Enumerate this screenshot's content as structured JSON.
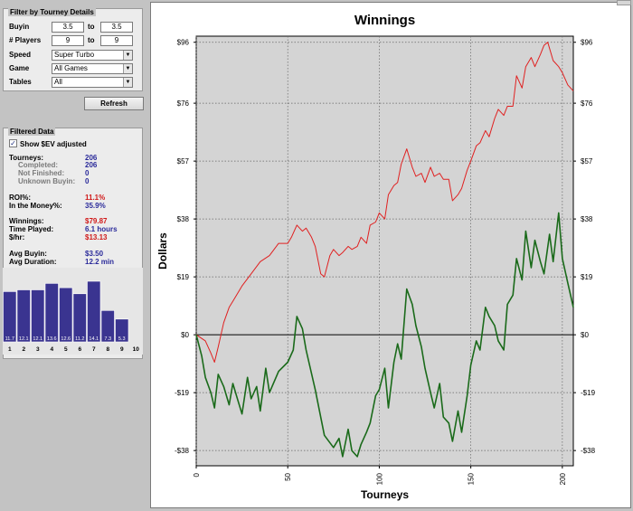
{
  "filter": {
    "title": "Filter by Tourney Details",
    "buyin": {
      "label": "Buyin",
      "from": "3.5",
      "to_label": "to",
      "to": "3.5"
    },
    "players": {
      "label": "# Players",
      "from": "9",
      "to_label": "to",
      "to": "9"
    },
    "speed": {
      "label": "Speed",
      "value": "Super Turbo"
    },
    "game": {
      "label": "Game",
      "value": "All Games"
    },
    "tables": {
      "label": "Tables",
      "value": "All"
    },
    "refresh_label": "Refresh"
  },
  "filtered": {
    "title": "Filtered Data",
    "show_sev_label": "Show $EV adjusted",
    "show_sev_checked": true,
    "check_glyph": "✓",
    "stats": [
      {
        "key": "Tourneys:",
        "value": "206",
        "type": "main",
        "color": "blue"
      },
      {
        "key": "Completed:",
        "value": "206",
        "type": "sub",
        "color": "blue"
      },
      {
        "key": "Not Finished:",
        "value": "0",
        "type": "sub",
        "color": "blue"
      },
      {
        "key": "Unknown Buyin:",
        "value": "0",
        "type": "sub",
        "color": "blue"
      },
      {
        "key": "ROI%:",
        "value": "11.1%",
        "type": "main",
        "color": "red"
      },
      {
        "key": "In the Money%:",
        "value": "35.9%",
        "type": "main",
        "color": "blue"
      },
      {
        "key": "Winnings:",
        "value": "$79.87",
        "type": "main",
        "color": "red"
      },
      {
        "key": "Time Played:",
        "value": "6.1 hours",
        "type": "main",
        "color": "blue"
      },
      {
        "key": "$/hr:",
        "value": "$13.13",
        "type": "main",
        "color": "red"
      },
      {
        "key": "Avg Buyin:",
        "value": "$3.50",
        "type": "main",
        "color": "blue"
      },
      {
        "key": "Avg Duration:",
        "value": "12.2 min",
        "type": "main",
        "color": "blue"
      }
    ],
    "histogram": {
      "positions": [
        "1",
        "2",
        "3",
        "4",
        "5",
        "6",
        "7",
        "8",
        "9",
        "10"
      ],
      "bar_labels": [
        "11.7",
        "12.1",
        "12.1",
        "13.6",
        "12.6",
        "11.2",
        "14.1",
        "7.3",
        "5.3",
        ""
      ],
      "values": [
        11.7,
        12.1,
        12.1,
        13.6,
        12.6,
        11.2,
        14.1,
        7.3,
        5.3,
        0
      ],
      "color": "#3a3490"
    }
  },
  "chart_data": {
    "type": "line",
    "title": "Winnings",
    "xlabel": "Tourneys",
    "ylabel": "Dollars",
    "xlim": [
      0,
      206
    ],
    "ylim": [
      -43,
      98
    ],
    "x_ticks": [
      0,
      50,
      100,
      150,
      200
    ],
    "y_ticks": [
      -38,
      -19,
      0,
      19,
      38,
      57,
      76,
      96
    ],
    "y_tick_labels": [
      "-$38",
      "-$19",
      "$0",
      "$19",
      "$38",
      "$57",
      "$76",
      "$96"
    ],
    "grid": true,
    "series": [
      {
        "color": "#e02020",
        "x": [
          0,
          5,
          8,
          10,
          12,
          15,
          18,
          20,
          25,
          30,
          35,
          40,
          45,
          50,
          52,
          55,
          58,
          60,
          63,
          65,
          68,
          70,
          73,
          75,
          78,
          80,
          83,
          85,
          88,
          90,
          93,
          95,
          98,
          100,
          103,
          105,
          108,
          110,
          112,
          115,
          118,
          120,
          123,
          125,
          128,
          130,
          133,
          135,
          138,
          140,
          143,
          145,
          148,
          150,
          153,
          155,
          158,
          160,
          163,
          165,
          168,
          170,
          173,
          175,
          178,
          180,
          183,
          185,
          188,
          190,
          192,
          195,
          198,
          200,
          203,
          206
        ],
        "y": [
          0,
          -2,
          -6,
          -9,
          -4,
          4,
          9,
          11,
          16,
          20,
          24,
          26,
          30,
          30,
          32,
          36,
          34,
          35,
          32,
          29,
          20,
          19,
          26,
          28,
          26,
          27,
          29,
          28,
          29,
          32,
          30,
          36,
          37,
          40,
          38,
          46,
          49,
          50,
          56,
          61,
          55,
          52,
          53,
          50,
          55,
          52,
          53,
          51,
          51,
          44,
          46,
          48,
          54,
          57,
          62,
          63,
          67,
          65,
          71,
          74,
          72,
          75,
          75,
          85,
          81,
          88,
          91,
          88,
          92,
          95,
          96,
          90,
          88,
          86,
          82,
          80
        ]
      },
      {
        "color": "#1a6a1a",
        "x": [
          0,
          3,
          5,
          8,
          10,
          12,
          15,
          18,
          20,
          22,
          25,
          28,
          30,
          33,
          35,
          38,
          40,
          45,
          50,
          53,
          55,
          58,
          60,
          65,
          70,
          75,
          78,
          80,
          83,
          85,
          88,
          90,
          93,
          95,
          98,
          100,
          103,
          105,
          108,
          110,
          112,
          115,
          118,
          120,
          123,
          125,
          128,
          130,
          133,
          135,
          138,
          140,
          143,
          145,
          148,
          150,
          153,
          155,
          158,
          160,
          163,
          165,
          168,
          170,
          173,
          175,
          178,
          180,
          183,
          185,
          188,
          190,
          193,
          195,
          198,
          200,
          203,
          206
        ],
        "y": [
          0,
          -7,
          -14,
          -19,
          -24,
          -13,
          -17,
          -23,
          -16,
          -20,
          -26,
          -14,
          -21,
          -17,
          -25,
          -11,
          -19,
          -12,
          -9,
          -5,
          6,
          2,
          -5,
          -18,
          -33,
          -37,
          -34,
          -40,
          -31,
          -38,
          -40,
          -36,
          -32,
          -29,
          -20,
          -18,
          -11,
          -24,
          -9,
          -3,
          -8,
          15,
          10,
          3,
          -4,
          -11,
          -19,
          -24,
          -16,
          -27,
          -29,
          -35,
          -25,
          -32,
          -20,
          -10,
          -2,
          -5,
          9,
          6,
          3,
          -2,
          -5,
          10,
          13,
          25,
          18,
          34,
          22,
          31,
          24,
          20,
          33,
          24,
          40,
          25,
          17,
          9
        ]
      }
    ]
  }
}
